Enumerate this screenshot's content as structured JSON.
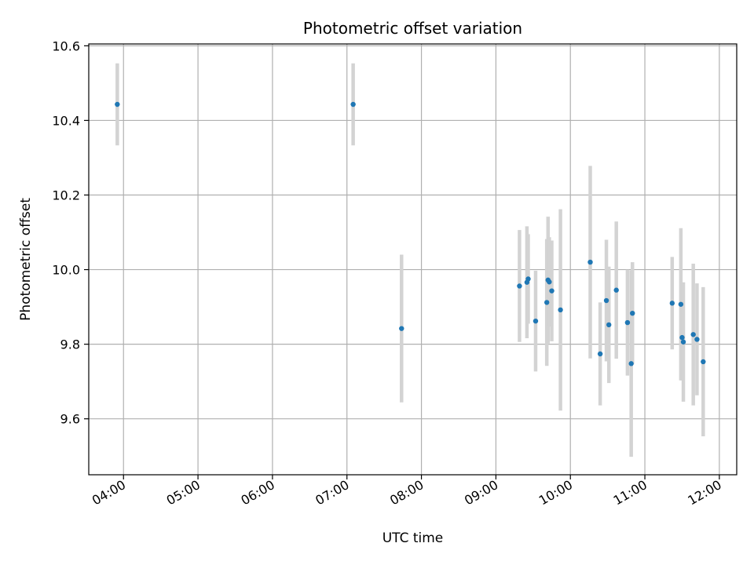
{
  "chart_data": {
    "type": "scatter",
    "title": "Photometric offset variation",
    "xlabel": "UTC time",
    "ylabel": "Photometric offset",
    "x_ticks": [
      "04:00",
      "05:00",
      "06:00",
      "07:00",
      "08:00",
      "09:00",
      "10:00",
      "11:00",
      "12:00"
    ],
    "y_ticks": [
      "9.6",
      "9.8",
      "10.0",
      "10.2",
      "10.4",
      "10.6"
    ],
    "xlim": [
      "03:32",
      "12:14"
    ],
    "ylim": [
      9.45,
      10.605
    ],
    "grid": true,
    "colors": {
      "marker": "#1f77b4",
      "errorbar": "#d3d3d3",
      "grid": "#b0b0b0",
      "axes": "#000000"
    },
    "points": [
      {
        "x": "03:55",
        "y": 10.443,
        "err": 0.11
      },
      {
        "x": "07:05",
        "y": 10.443,
        "err": 0.11
      },
      {
        "x": "07:44",
        "y": 9.842,
        "err": 0.198
      },
      {
        "x": "09:19",
        "y": 9.956,
        "err": 0.15
      },
      {
        "x": "09:25",
        "y": 9.966,
        "err": 0.15
      },
      {
        "x": "09:26",
        "y": 9.975,
        "err": 0.12
      },
      {
        "x": "09:32",
        "y": 9.862,
        "err": 0.135
      },
      {
        "x": "09:41",
        "y": 9.912,
        "err": 0.17
      },
      {
        "x": "09:42",
        "y": 9.972,
        "err": 0.17
      },
      {
        "x": "09:43",
        "y": 9.967,
        "err": 0.12
      },
      {
        "x": "09:45",
        "y": 9.943,
        "err": 0.135
      },
      {
        "x": "09:52",
        "y": 9.892,
        "err": 0.27
      },
      {
        "x": "10:16",
        "y": 10.02,
        "err": 0.258
      },
      {
        "x": "10:24",
        "y": 9.774,
        "err": 0.138
      },
      {
        "x": "10:29",
        "y": 9.917,
        "err": 0.163
      },
      {
        "x": "10:31",
        "y": 9.852,
        "err": 0.156
      },
      {
        "x": "10:37",
        "y": 9.945,
        "err": 0.184
      },
      {
        "x": "10:46",
        "y": 9.858,
        "err": 0.142
      },
      {
        "x": "10:49",
        "y": 9.748,
        "err": 0.25
      },
      {
        "x": "10:50",
        "y": 9.883,
        "err": 0.137
      },
      {
        "x": "11:22",
        "y": 9.91,
        "err": 0.124
      },
      {
        "x": "11:29",
        "y": 9.907,
        "err": 0.204
      },
      {
        "x": "11:30",
        "y": 9.818,
        "err": 0.115
      },
      {
        "x": "11:31",
        "y": 9.806,
        "err": 0.16
      },
      {
        "x": "11:39",
        "y": 9.826,
        "err": 0.19
      },
      {
        "x": "11:42",
        "y": 9.813,
        "err": 0.15
      },
      {
        "x": "11:47",
        "y": 9.753,
        "err": 0.2
      }
    ]
  }
}
